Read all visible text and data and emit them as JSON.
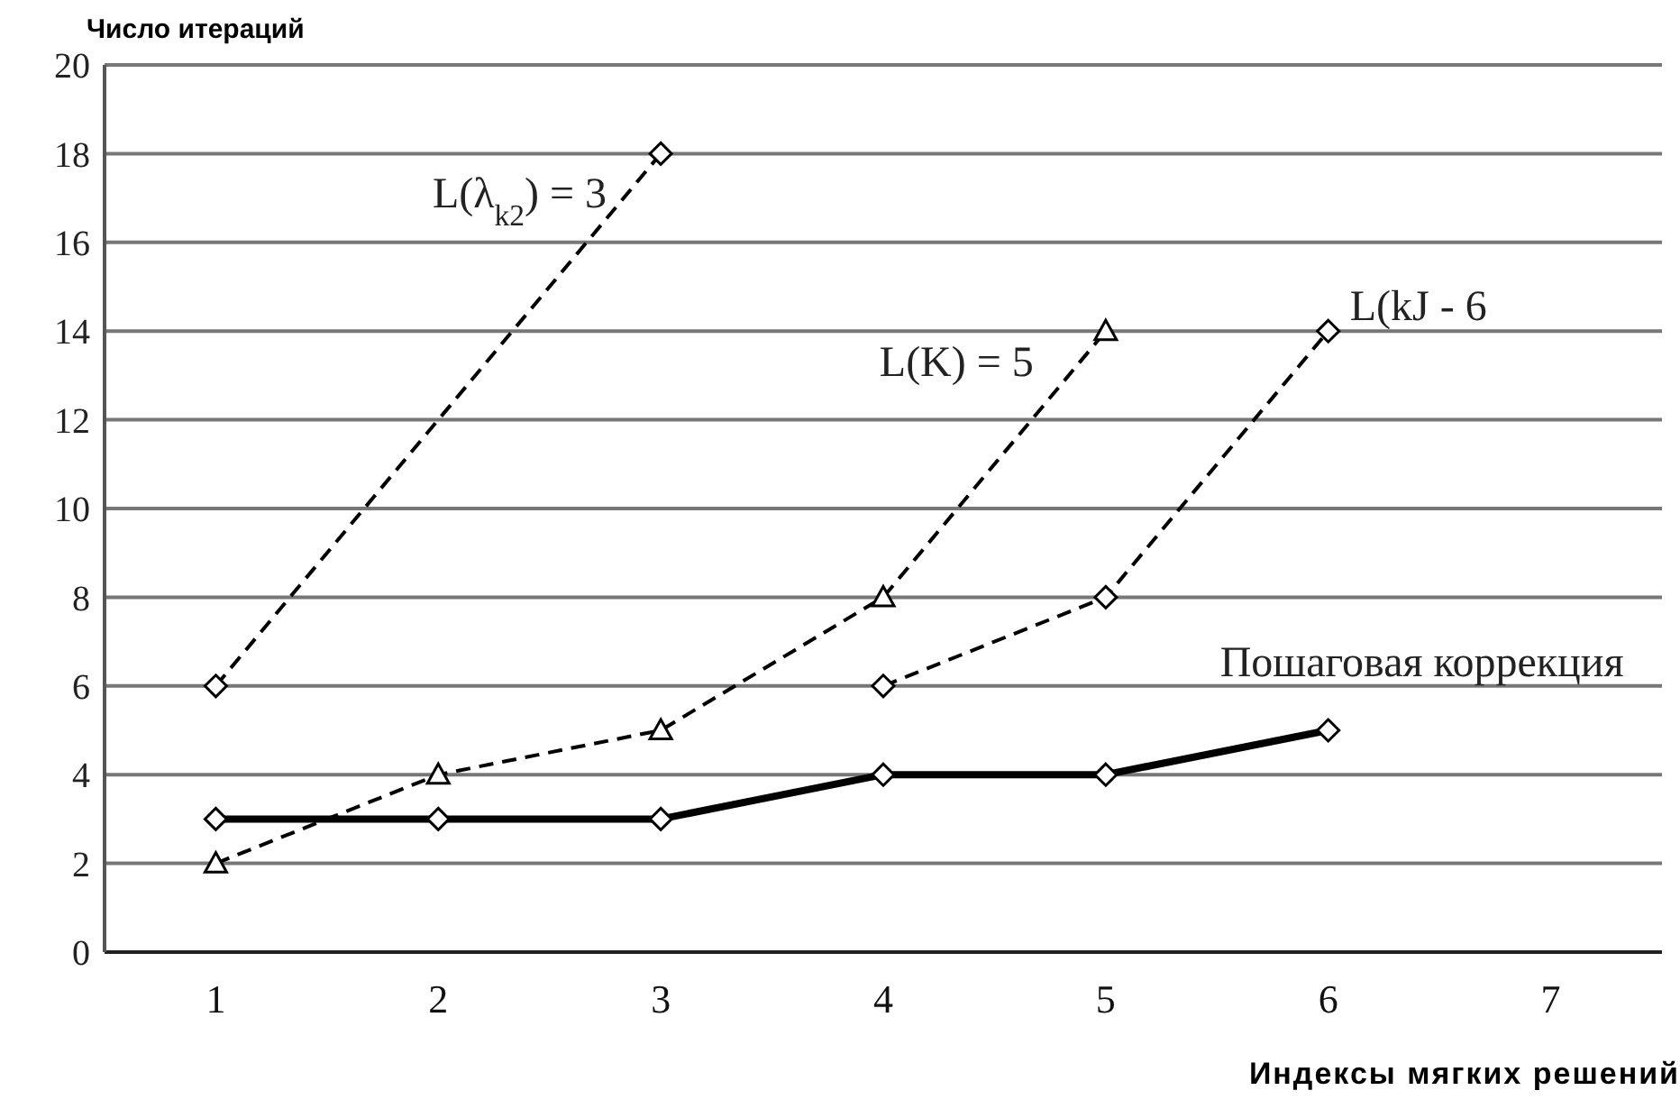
{
  "chart_data": {
    "type": "line",
    "xlabel": "Индексы мягких решений",
    "ylabel": "Число итераций",
    "xlim": [
      0.5,
      7.5
    ],
    "xticks": [
      1,
      2,
      3,
      4,
      5,
      6,
      7
    ],
    "ylim": [
      0,
      20
    ],
    "yticks": [
      0,
      2,
      4,
      6,
      8,
      10,
      12,
      14,
      16,
      18,
      20
    ],
    "grid": "y",
    "legend": false,
    "series": [
      {
        "name": "L(λ$_{k2}$) = 3",
        "color": "#000000",
        "x": [
          1,
          3
        ],
        "values": [
          6,
          18
        ],
        "marker": "diamond",
        "line_style": "dashed"
      },
      {
        "name": "L(K) = 5",
        "color": "#000000",
        "x": [
          1,
          2,
          3,
          4,
          5
        ],
        "values": [
          2,
          4,
          5,
          8,
          14
        ],
        "marker": "triangle",
        "line_style": "dashed"
      },
      {
        "name": "L(kJ - 6",
        "color": "#000000",
        "x": [
          4,
          5,
          6
        ],
        "values": [
          6,
          8,
          14
        ],
        "marker": "diamond",
        "line_style": "dashed"
      },
      {
        "name": "Пошаговая коррекция",
        "color": "#000000",
        "x": [
          1,
          2,
          3,
          4,
          5,
          6
        ],
        "values": [
          3,
          3,
          3,
          4,
          4,
          5
        ],
        "marker": "diamond",
        "line_style": "solid"
      }
    ]
  }
}
